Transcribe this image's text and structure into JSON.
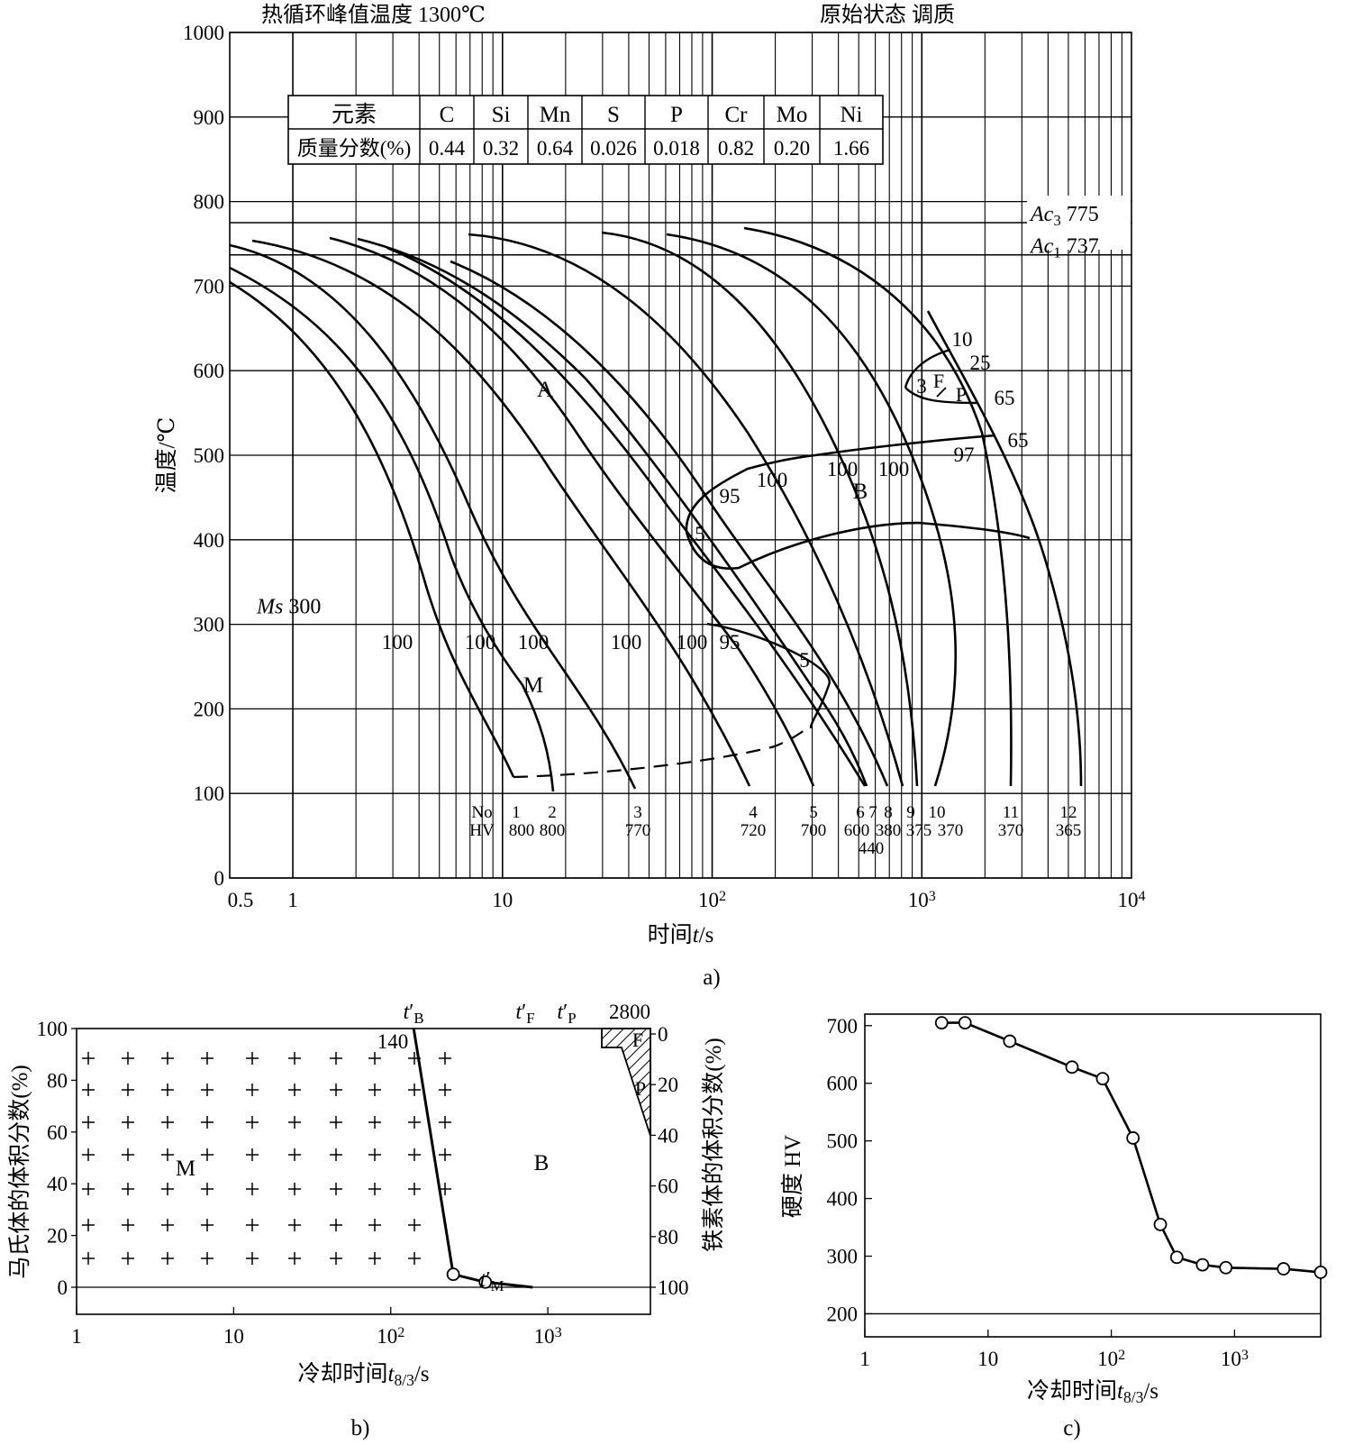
{
  "chart_data": [
    {
      "id": "a",
      "type": "line",
      "panel_caption": "a)",
      "title_left": "热循环峰值温度  1300℃",
      "title_right": "原始状态  调质",
      "xlabel_prefix": "时间",
      "xlabel_var": "t",
      "xlabel_unit": "/s",
      "ylabel": "温度/℃",
      "x_scale": "log",
      "xlim": [
        0.5,
        10000
      ],
      "ylim": [
        0,
        1000
      ],
      "x_ticks": [
        {
          "v": 0.5,
          "label": "0.5"
        },
        {
          "v": 1,
          "label": "1"
        },
        {
          "v": 10,
          "label": "10"
        },
        {
          "v": 100,
          "label": "10",
          "sup": "2"
        },
        {
          "v": 1000,
          "label": "10",
          "sup": "3"
        },
        {
          "v": 10000,
          "label": "10",
          "sup": "4"
        }
      ],
      "y_ticks": [
        0,
        100,
        200,
        300,
        400,
        500,
        600,
        700,
        800,
        900,
        1000
      ],
      "composition_table": {
        "headers": [
          "元素",
          "C",
          "Si",
          "Mn",
          "S",
          "P",
          "Cr",
          "Mo",
          "Ni"
        ],
        "row_label": "质量分数(%)",
        "values": [
          "0.44",
          "0.32",
          "0.64",
          "0.026",
          "0.018",
          "0.82",
          "0.20",
          "1.66"
        ]
      },
      "ac3": {
        "name": "Ac",
        "sub": "3",
        "value": 775
      },
      "ac1": {
        "name": "Ac",
        "sub": "1",
        "value": 737
      },
      "ms": {
        "name": "Ms",
        "value": 300
      },
      "phase_labels": [
        "A",
        "M",
        "B",
        "F",
        "P"
      ],
      "bottom_row_labels": {
        "no": "No",
        "hv": "HV"
      },
      "cooling_curves": [
        {
          "no": "1",
          "hv": "800",
          "end_t": 11.5
        },
        {
          "no": "2",
          "hv": "800",
          "end_t": 19
        },
        {
          "no": "3",
          "hv": "770",
          "end_t": 47
        },
        {
          "no": "4",
          "hv": "720",
          "end_t": 160
        },
        {
          "no": "5",
          "hv": "700",
          "end_t": 320
        },
        {
          "no": "6",
          "hv": "600",
          "end_t": 560
        },
        {
          "no": "7",
          "hv": "440",
          "end_t": 560
        },
        {
          "no": "8",
          "hv": "380",
          "end_t": 730
        },
        {
          "no": "9",
          "hv": "375",
          "end_t": 830
        },
        {
          "no": "10",
          "hv": "370",
          "end_t": 1200
        },
        {
          "no": "11",
          "hv": "370",
          "end_t": 2800
        },
        {
          "no": "12",
          "hv": "365",
          "end_t": 6000
        }
      ],
      "percent_labels": [
        "100",
        "100",
        "100",
        "100",
        "100",
        "95",
        "5",
        "95",
        "5",
        "100",
        "100",
        "100",
        "10",
        "25",
        "65",
        "65",
        "97",
        "3"
      ]
    },
    {
      "id": "b",
      "type": "area",
      "panel_caption": "b)",
      "xlabel": "冷却时间",
      "xlabel_var": "t",
      "xlabel_sub": "8/3",
      "xlabel_unit": "/s",
      "ylabel_left": "马氏体的体积分数(%)",
      "ylabel_right": "铁素体的体积分数(%)",
      "x_scale": "log",
      "xlim": [
        1,
        4500
      ],
      "ylim": [
        0,
        100
      ],
      "x_ticks": [
        {
          "v": 1,
          "label": "1"
        },
        {
          "v": 10,
          "label": "10"
        },
        {
          "v": 100,
          "label": "10",
          "sup": "2"
        },
        {
          "v": 1000,
          "label": "10",
          "sup": "3"
        }
      ],
      "y_ticks_left": [
        0,
        20,
        40,
        60,
        80,
        100
      ],
      "y_ticks_right": [
        0,
        20,
        40,
        60,
        80,
        100
      ],
      "martensite_line": {
        "x": [
          140,
          250,
          400,
          800
        ],
        "y": [
          100,
          5,
          2,
          0
        ]
      },
      "markers": [
        {
          "x": 250,
          "y": 5
        },
        {
          "x": 400,
          "y": 2
        }
      ],
      "annotations": {
        "tB": {
          "label": "t",
          "prime": "′",
          "sub": "B",
          "value": "140"
        },
        "tF": {
          "label": "t",
          "prime": "′",
          "sub": "F"
        },
        "tP": {
          "label": "t",
          "prime": "′",
          "sub": "P",
          "value": "2800"
        },
        "tM": {
          "label": "t",
          "prime": "′",
          "sub": "M"
        }
      },
      "region_labels": {
        "M": "M",
        "B": "B",
        "F": "F",
        "P": "P"
      }
    },
    {
      "id": "c",
      "type": "line",
      "panel_caption": "c)",
      "xlabel": "冷却时间",
      "xlabel_var": "t",
      "xlabel_sub": "8/3",
      "xlabel_unit": "/s",
      "ylabel": "硬度  HV",
      "x_scale": "log",
      "xlim": [
        1,
        5000
      ],
      "ylim": [
        160,
        720
      ],
      "x_ticks": [
        {
          "v": 1,
          "label": "1"
        },
        {
          "v": 10,
          "label": "10"
        },
        {
          "v": 100,
          "label": "10",
          "sup": "2"
        },
        {
          "v": 1000,
          "label": "10",
          "sup": "3"
        }
      ],
      "y_ticks": [
        200,
        300,
        400,
        500,
        600,
        700
      ],
      "x": [
        4.2,
        6.5,
        15,
        48,
        85,
        150,
        250,
        340,
        550,
        850,
        2500,
        5000
      ],
      "y": [
        705,
        705,
        673,
        628,
        608,
        505,
        355,
        298,
        285,
        280,
        278,
        272
      ]
    }
  ]
}
